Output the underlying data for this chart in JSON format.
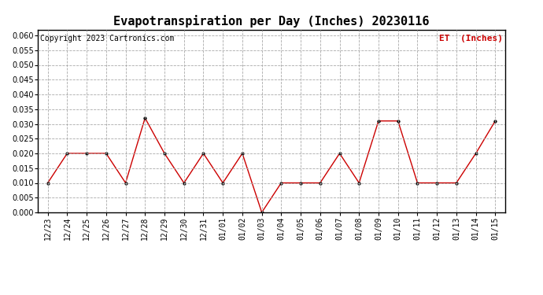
{
  "title": "Evapotranspiration per Day (Inches) 20230116",
  "copyright": "Copyright 2023 Cartronics.com",
  "legend_label": "ET  (Inches)",
  "x_labels": [
    "12/23",
    "12/24",
    "12/25",
    "12/26",
    "12/27",
    "12/28",
    "12/29",
    "12/30",
    "12/31",
    "01/01",
    "01/02",
    "01/03",
    "01/04",
    "01/05",
    "01/06",
    "01/07",
    "01/08",
    "01/09",
    "01/10",
    "01/11",
    "01/12",
    "01/13",
    "01/14",
    "01/15"
  ],
  "y_values": [
    0.01,
    0.02,
    0.02,
    0.02,
    0.01,
    0.032,
    0.02,
    0.01,
    0.02,
    0.01,
    0.02,
    0.0,
    0.01,
    0.01,
    0.01,
    0.02,
    0.01,
    0.031,
    0.031,
    0.01,
    0.01,
    0.01,
    0.02,
    0.031
  ],
  "ylim": [
    0.0,
    0.062
  ],
  "yticks": [
    0.0,
    0.005,
    0.01,
    0.015,
    0.02,
    0.025,
    0.03,
    0.035,
    0.04,
    0.045,
    0.05,
    0.055,
    0.06
  ],
  "line_color": "#cc0000",
  "marker_color": "#000000",
  "grid_color": "#aaaaaa",
  "background_color": "#ffffff",
  "title_fontsize": 11,
  "copyright_fontsize": 7,
  "legend_fontsize": 8,
  "legend_color": "#cc0000",
  "tick_fontsize": 7
}
